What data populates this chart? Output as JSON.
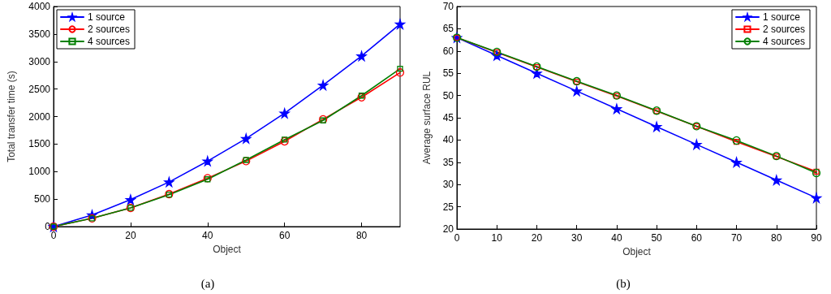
{
  "chart_data": [
    {
      "type": "line",
      "xlabel": "Object",
      "ylabel": "Total transfer time (s)",
      "annotations": [
        "(a)"
      ],
      "x": [
        0,
        10,
        20,
        30,
        40,
        50,
        60,
        70,
        80,
        90
      ],
      "xlim": [
        0,
        90
      ],
      "xticks": [
        0,
        20,
        40,
        60,
        80
      ],
      "ylim": [
        0,
        4000
      ],
      "yticks": [
        0,
        500,
        1000,
        1500,
        2000,
        2500,
        3000,
        3500,
        4000
      ],
      "grid": false,
      "legend": "top left",
      "line_style": "solid",
      "series": [
        {
          "name": "1 source",
          "color": "#0000ff",
          "marker": "star",
          "values": [
            0,
            210,
            490,
            810,
            1190,
            1600,
            2060,
            2570,
            3100,
            3680
          ]
        },
        {
          "name": "2 sources",
          "color": "#ff0000",
          "marker": "circle",
          "values": [
            0,
            150,
            340,
            590,
            880,
            1190,
            1550,
            1950,
            2350,
            2800
          ]
        },
        {
          "name": "4 sources",
          "color": "#008000",
          "marker": "square",
          "values": [
            0,
            150,
            340,
            580,
            860,
            1210,
            1580,
            1930,
            2380,
            2870
          ]
        }
      ]
    },
    {
      "type": "line",
      "xlabel": "Object",
      "ylabel": "Average surface RUL",
      "annotations": [
        "(b)"
      ],
      "x": [
        0,
        10,
        20,
        30,
        40,
        50,
        60,
        70,
        80,
        90
      ],
      "xlim": [
        0,
        90
      ],
      "xticks": [
        0,
        10,
        20,
        30,
        40,
        50,
        60,
        70,
        80,
        90
      ],
      "ylim": [
        20,
        70
      ],
      "yticks": [
        20,
        25,
        30,
        35,
        40,
        45,
        50,
        55,
        60,
        65,
        70
      ],
      "grid": false,
      "legend": "top right",
      "line_style": "solid",
      "series": [
        {
          "name": "1 source",
          "color": "#0000ff",
          "marker": "star",
          "values": [
            63,
            59,
            55,
            51,
            47,
            43,
            39,
            35,
            31,
            27
          ]
        },
        {
          "name": "2 sources",
          "color": "#ff0000",
          "marker": "square",
          "values": [
            63,
            59.7,
            56.4,
            53.1,
            49.9,
            46.5,
            43.1,
            39.6,
            36.3,
            32.9
          ]
        },
        {
          "name": "4 sources",
          "color": "#008000",
          "marker": "circle",
          "values": [
            63,
            59.8,
            56.5,
            53.2,
            50,
            46.6,
            43.1,
            39.9,
            36.4,
            32.6
          ]
        }
      ]
    }
  ]
}
